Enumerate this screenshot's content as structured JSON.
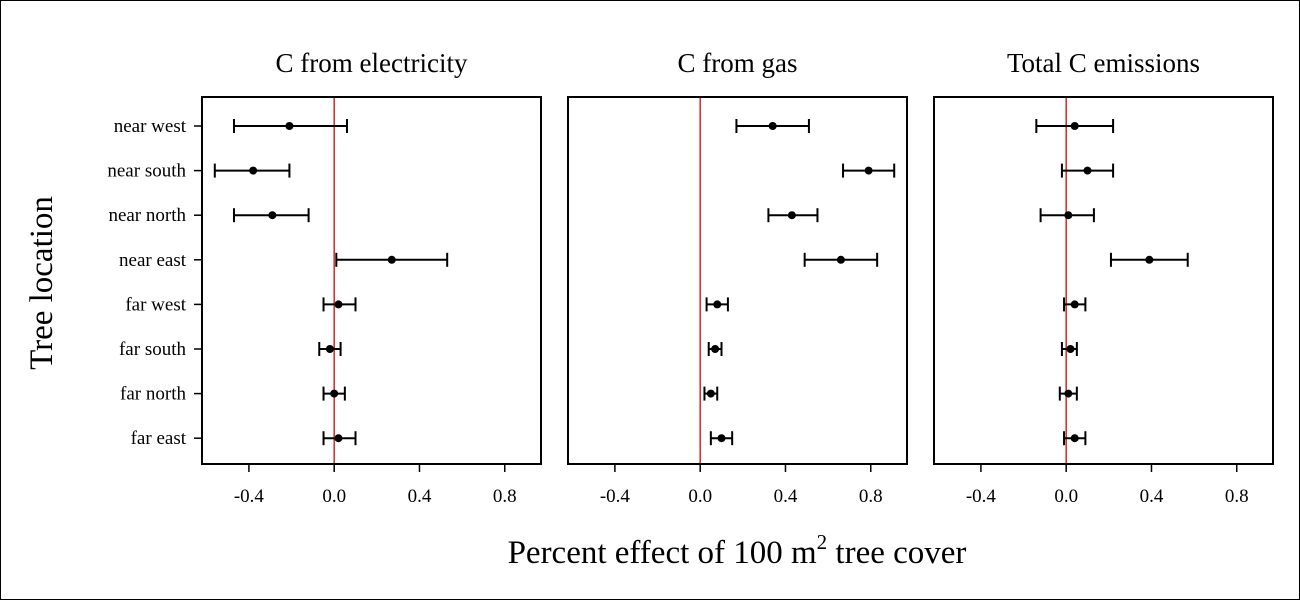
{
  "chart_data": {
    "type": "scatter",
    "ylabel": "Tree location",
    "xlabel": {
      "prefix": "Percent effect of 100 m",
      "superscript": "2",
      "suffix": " tree cover"
    },
    "categories": [
      "near west",
      "near south",
      "near north",
      "near east",
      "far west",
      "far south",
      "far north",
      "far east"
    ],
    "xlim": [
      -0.62,
      0.97
    ],
    "xticks": [
      -0.4,
      0.0,
      0.4,
      0.8
    ],
    "xtick_labels": [
      "-0.4",
      "0.0",
      "0.4",
      "0.8"
    ],
    "reference_line": {
      "x": 0.0,
      "color": "#d62728"
    },
    "panels": [
      {
        "title": "C from electricity",
        "points": [
          {
            "category": "near west",
            "x": -0.21,
            "lo": -0.47,
            "hi": 0.06
          },
          {
            "category": "near south",
            "x": -0.38,
            "lo": -0.56,
            "hi": -0.21
          },
          {
            "category": "near north",
            "x": -0.29,
            "lo": -0.47,
            "hi": -0.12
          },
          {
            "category": "near east",
            "x": 0.27,
            "lo": 0.01,
            "hi": 0.53
          },
          {
            "category": "far west",
            "x": 0.02,
            "lo": -0.05,
            "hi": 0.1
          },
          {
            "category": "far south",
            "x": -0.02,
            "lo": -0.07,
            "hi": 0.03
          },
          {
            "category": "far north",
            "x": 0.0,
            "lo": -0.05,
            "hi": 0.05
          },
          {
            "category": "far east",
            "x": 0.02,
            "lo": -0.05,
            "hi": 0.1
          }
        ]
      },
      {
        "title": "C from gas",
        "points": [
          {
            "category": "near west",
            "x": 0.34,
            "lo": 0.17,
            "hi": 0.51
          },
          {
            "category": "near south",
            "x": 0.79,
            "lo": 0.67,
            "hi": 0.91
          },
          {
            "category": "near north",
            "x": 0.43,
            "lo": 0.32,
            "hi": 0.55
          },
          {
            "category": "near east",
            "x": 0.66,
            "lo": 0.49,
            "hi": 0.83
          },
          {
            "category": "far west",
            "x": 0.08,
            "lo": 0.03,
            "hi": 0.13
          },
          {
            "category": "far south",
            "x": 0.07,
            "lo": 0.04,
            "hi": 0.1
          },
          {
            "category": "far north",
            "x": 0.05,
            "lo": 0.02,
            "hi": 0.08
          },
          {
            "category": "far east",
            "x": 0.1,
            "lo": 0.05,
            "hi": 0.15
          }
        ]
      },
      {
        "title": "Total C emissions",
        "points": [
          {
            "category": "near west",
            "x": 0.04,
            "lo": -0.14,
            "hi": 0.22
          },
          {
            "category": "near south",
            "x": 0.1,
            "lo": -0.02,
            "hi": 0.22
          },
          {
            "category": "near north",
            "x": 0.01,
            "lo": -0.12,
            "hi": 0.13
          },
          {
            "category": "near east",
            "x": 0.39,
            "lo": 0.21,
            "hi": 0.57
          },
          {
            "category": "far west",
            "x": 0.04,
            "lo": -0.01,
            "hi": 0.09
          },
          {
            "category": "far south",
            "x": 0.02,
            "lo": -0.02,
            "hi": 0.05
          },
          {
            "category": "far north",
            "x": 0.01,
            "lo": -0.03,
            "hi": 0.05
          },
          {
            "category": "far east",
            "x": 0.04,
            "lo": -0.01,
            "hi": 0.09
          }
        ]
      }
    ]
  }
}
